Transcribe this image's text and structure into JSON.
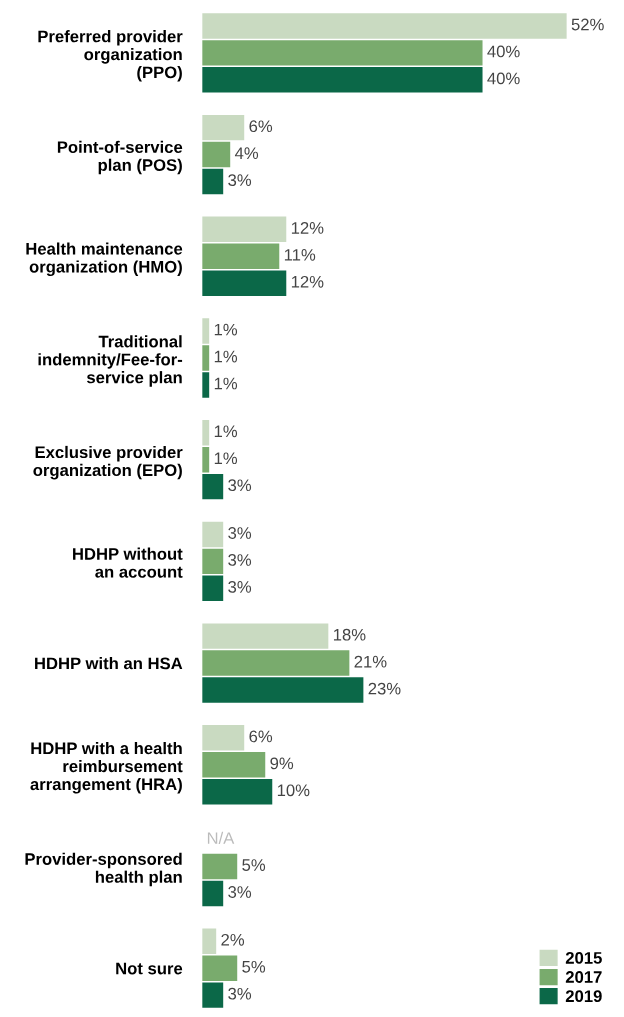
{
  "chart_data": {
    "type": "bar",
    "orientation": "horizontal",
    "categories": [
      "Preferred provider\norganization\n(PPO)",
      "Point-of-service\nplan (POS)",
      "Health maintenance\norganization (HMO)",
      "Traditional\nindemnity/Fee-for-\nservice plan",
      "Exclusive provider\norganization (EPO)",
      "HDHP without\nan account",
      "HDHP with an HSA",
      "HDHP with a health\nreimbursement\narrangement (HRA)",
      "Provider-sponsored\nhealth plan",
      "Not sure"
    ],
    "series": [
      {
        "name": "2015",
        "color": "#c9dac1",
        "values": [
          52,
          6,
          12,
          1,
          1,
          3,
          18,
          6,
          null,
          2
        ],
        "value_labels": [
          "52%",
          "6%",
          "12%",
          "1%",
          "1%",
          "3%",
          "18%",
          "6%",
          "N/A",
          "2%"
        ]
      },
      {
        "name": "2017",
        "color": "#79ab6d",
        "values": [
          40,
          4,
          11,
          1,
          1,
          3,
          21,
          9,
          5,
          5
        ],
        "value_labels": [
          "40%",
          "4%",
          "11%",
          "1%",
          "1%",
          "3%",
          "21%",
          "9%",
          "5%",
          "5%"
        ]
      },
      {
        "name": "2019",
        "color": "#0b6848",
        "values": [
          40,
          3,
          12,
          1,
          3,
          3,
          23,
          10,
          3,
          3
        ],
        "value_labels": [
          "40%",
          "3%",
          "12%",
          "1%",
          "3%",
          "3%",
          "23%",
          "10%",
          "3%",
          "3%"
        ]
      }
    ],
    "legend": "bottom right",
    "grid": false
  }
}
